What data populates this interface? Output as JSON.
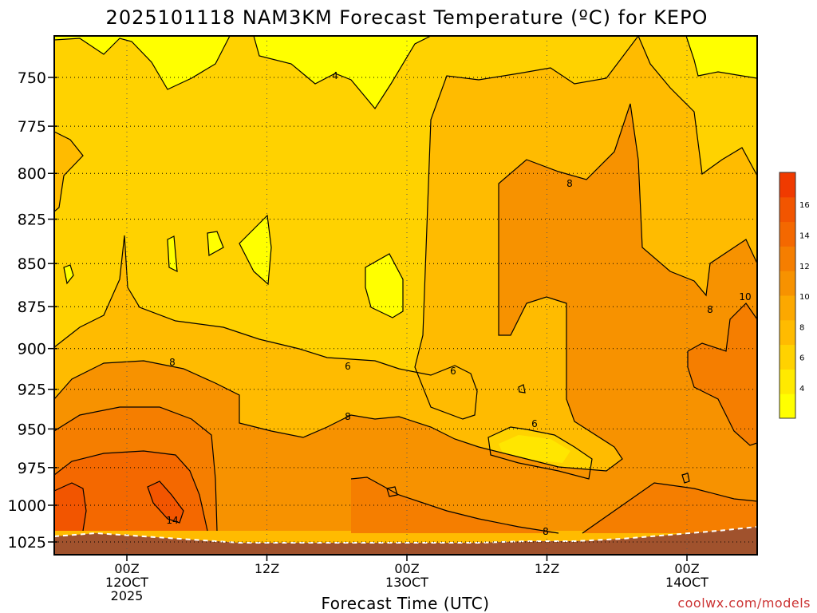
{
  "chart_data": {
    "type": "contour",
    "title": "2025101118 NAM3KM Forecast Temperature (ºC) for KEPO",
    "xlabel": "Forecast Time (UTC)",
    "ylabel": "",
    "credit": "coolwx.com/models",
    "y_levels": [
      "750",
      "775",
      "800",
      "825",
      "850",
      "875",
      "900",
      "925",
      "950",
      "975",
      "1000",
      "1025"
    ],
    "x_ticks": [
      {
        "line1": "00Z",
        "line2": "12OCT",
        "line3": "2025"
      },
      {
        "line1": "12Z",
        "line2": "",
        "line3": ""
      },
      {
        "line1": "00Z",
        "line2": "13OCT",
        "line3": ""
      },
      {
        "line1": "12Z",
        "line2": "",
        "line3": ""
      },
      {
        "line1": "00Z",
        "line2": "14OCT",
        "line3": ""
      }
    ],
    "contour_labels": [
      "4",
      "6",
      "6",
      "6",
      "8",
      "8",
      "8",
      "8",
      "8",
      "10",
      "14"
    ],
    "colorbar": {
      "ticks": [
        "4",
        "6",
        "8",
        "10",
        "12",
        "14",
        "16"
      ],
      "colors": [
        "#ffff00",
        "#ffea00",
        "#ffd200",
        "#ffbb00",
        "#fca800",
        "#f79200",
        "#f57e00",
        "#f46800",
        "#f25500",
        "#f03a00"
      ]
    },
    "fill_colors": {
      "lt4": "#ffff00",
      "c4_6": "#ffd200",
      "c6_8": "#ffbb00",
      "c8_10": "#f79200",
      "c10_12": "#f57e00",
      "c12_14": "#f46800",
      "gt14": "#f25500",
      "ground": "#a0522d"
    }
  }
}
